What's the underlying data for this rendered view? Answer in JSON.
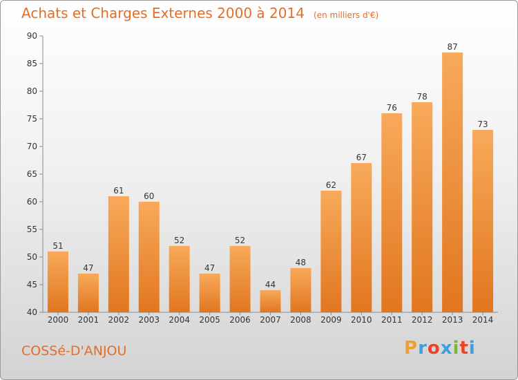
{
  "chart_title": "Achats et Charges Externes 2000 à 2014",
  "chart_unit": "(en milliers d'€)",
  "commune": "COSSé-D'ANJOU",
  "logo": {
    "letters": [
      "P",
      "r",
      "o",
      "x",
      "i",
      "t",
      "i"
    ],
    "colors": [
      "#f0a030",
      "#3aa0e0",
      "#e8452c",
      "#3aa0e0",
      "#7ab82f",
      "#e8452c",
      "#3aa0e0"
    ]
  },
  "colors": {
    "bar": "#ec8a2e",
    "bar_light": "#f6a857",
    "title": "#e56d25",
    "axis": "#8a8a8a"
  },
  "chart_data": {
    "type": "bar",
    "title": "Achats et Charges Externes 2000 à 2014",
    "subtitle": "(en milliers d'€)",
    "categories": [
      "2000",
      "2001",
      "2002",
      "2003",
      "2004",
      "2005",
      "2006",
      "2007",
      "2008",
      "2009",
      "2010",
      "2011",
      "2012",
      "2013",
      "2014"
    ],
    "values": [
      51,
      47,
      61,
      60,
      52,
      47,
      52,
      44,
      48,
      62,
      67,
      76,
      78,
      87,
      73
    ],
    "ylim": [
      40,
      90
    ],
    "yticks": [
      40,
      45,
      50,
      55,
      60,
      65,
      70,
      75,
      80,
      85,
      90
    ],
    "grid": false
  }
}
